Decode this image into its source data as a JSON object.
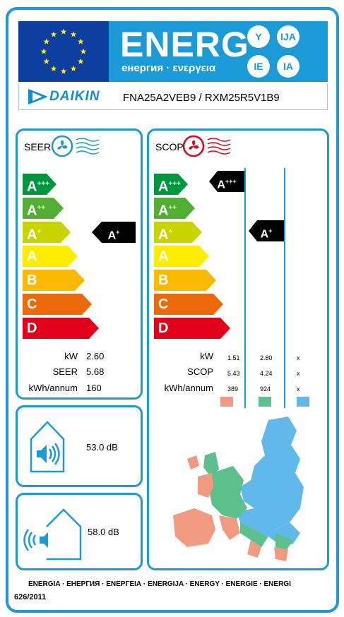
{
  "header": {
    "title": "ENERG",
    "subtitle": "енергия · ενεργεια",
    "languages": [
      "Y",
      "IJA",
      "IE",
      "IA"
    ]
  },
  "brand": {
    "name": "DAIKIN",
    "model": "FNA25A2VEB9 / RXM25R5V1B9"
  },
  "seer_panel": {
    "title": "SEER",
    "classes": [
      "A",
      "A",
      "A",
      "A",
      "B",
      "C",
      "D"
    ],
    "class_sups": [
      "+++",
      "++",
      "+",
      "",
      "",
      "",
      ""
    ],
    "rating": "A",
    "rating_sup": "+",
    "labels": [
      "kW",
      "SEER",
      "kWh/annum"
    ],
    "values": [
      "2.60",
      "5.68",
      "160"
    ]
  },
  "scop_panel": {
    "title": "SCOP",
    "classes": [
      "A",
      "A",
      "A",
      "A",
      "B",
      "C",
      "D"
    ],
    "class_sups": [
      "+++",
      "++",
      "+",
      "",
      "",
      "",
      ""
    ],
    "ratings": [
      {
        "letter": "A",
        "sup": "+++"
      },
      {
        "letter": "A",
        "sup": "+"
      }
    ],
    "labels": [
      "kW",
      "SCOP",
      "kWh/annum"
    ],
    "columns": [
      [
        "1.51",
        "5.43",
        "389"
      ],
      [
        "2.80",
        "4.24",
        "924"
      ],
      [
        "x",
        "x",
        "x"
      ]
    ],
    "zone_colors": [
      "#f29a80",
      "#5cc08c",
      "#60b9ea"
    ]
  },
  "noise": {
    "indoor": "53.0 dB",
    "outdoor": "58.0 dB"
  },
  "footer": {
    "languages": "ENERGIA · ЕНЕРГИЯ · ΕΝΕΡΓΕΙΑ · ENERGIJA · ENERGY · ENERGIE · ENERGI",
    "regulation": "626/2011"
  },
  "colors": {
    "frame": "#1a9bd7",
    "classes": [
      "#009640",
      "#52ae32",
      "#c8d400",
      "#ffed00",
      "#fbba00",
      "#eb6909",
      "#e2001a"
    ]
  }
}
